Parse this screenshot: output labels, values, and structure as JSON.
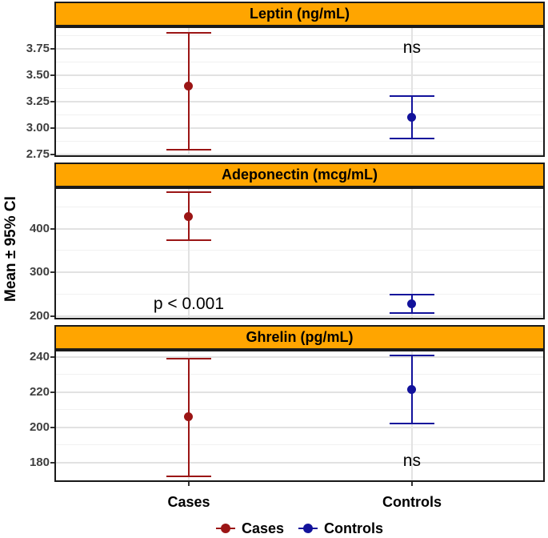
{
  "figure": {
    "y_axis_title": "Mean ± 95% CI",
    "x_categories": [
      "Cases",
      "Controls"
    ],
    "legend": [
      {
        "label": "Cases",
        "color": "#9B1515"
      },
      {
        "label": "Controls",
        "color": "#12129B"
      }
    ],
    "colors": {
      "cases": "#9B1515",
      "controls": "#12129B",
      "strip_fill": "#FFA500",
      "panel_border": "#1A1A1A",
      "grid_major": "#E2E2E2",
      "grid_minor": "#F1F1F1",
      "tick_label": "#3F3F3F"
    }
  },
  "chart_data": [
    {
      "type": "errorbar",
      "title": "Leptin (ng/mL)",
      "x_categories": [
        "Cases",
        "Controls"
      ],
      "ylim": [
        2.73,
        3.96
      ],
      "yticks": [
        2.75,
        3.0,
        3.25,
        3.5,
        3.75
      ],
      "ytick_labels": [
        "2.75",
        "3.00",
        "3.25",
        "3.50",
        "3.75"
      ],
      "yticks_minor": [
        2.875,
        3.125,
        3.375,
        3.625,
        3.875
      ],
      "series": [
        {
          "name": "Cases",
          "mean": 3.4,
          "lower": 2.8,
          "upper": 3.9
        },
        {
          "name": "Controls",
          "mean": 3.1,
          "lower": 2.9,
          "upper": 3.3
        }
      ],
      "annotation": {
        "text": "ns",
        "at": "Controls",
        "y": 3.76
      }
    },
    {
      "type": "errorbar",
      "title": "Adeponectin (mcg/mL)",
      "x_categories": [
        "Cases",
        "Controls"
      ],
      "ylim": [
        193,
        494
      ],
      "yticks": [
        200,
        300,
        400
      ],
      "ytick_labels": [
        "200",
        "300",
        "400"
      ],
      "yticks_minor": [
        250,
        350,
        450
      ],
      "series": [
        {
          "name": "Cases",
          "mean": 428,
          "lower": 374,
          "upper": 483
        },
        {
          "name": "Controls",
          "mean": 229,
          "lower": 208,
          "upper": 250
        }
      ],
      "annotation": {
        "text": "p < 0.001",
        "at": "Cases",
        "y": 227
      }
    },
    {
      "type": "errorbar",
      "title": "Ghrelin (pg/mL)",
      "x_categories": [
        "Cases",
        "Controls"
      ],
      "ylim": [
        169,
        244
      ],
      "yticks": [
        180,
        200,
        220,
        240
      ],
      "ytick_labels": [
        "180",
        "200",
        "220",
        "240"
      ],
      "yticks_minor": [
        170,
        190,
        210,
        230
      ],
      "series": [
        {
          "name": "Cases",
          "mean": 206,
          "lower": 172,
          "upper": 239
        },
        {
          "name": "Controls",
          "mean": 221.5,
          "lower": 202,
          "upper": 241
        }
      ],
      "annotation": {
        "text": "ns",
        "at": "Controls",
        "y": 181
      }
    }
  ]
}
